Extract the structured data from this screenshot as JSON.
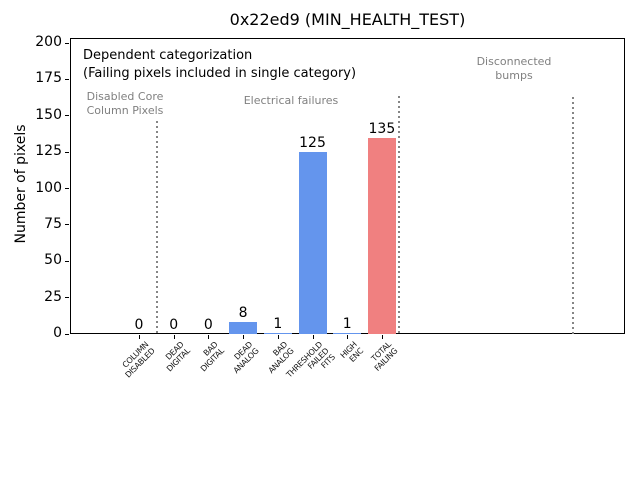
{
  "chart_data": {
    "type": "bar",
    "title": "0x22ed9 (MIN_HEALTH_TEST)",
    "xlabel": "",
    "ylabel": "Number of pixels",
    "ylim": [
      0,
      200
    ],
    "yticks": [
      0,
      25,
      50,
      75,
      100,
      125,
      150,
      175,
      200
    ],
    "grid": false,
    "legend": null,
    "categories": [
      "COLUMN\nDISABLED",
      "DEAD\nDIGITAL",
      "BAD\nDIGITAL",
      "DEAD\nANALOG",
      "BAD\nANALOG",
      "THRESHOLD\nFAILED\nFITS",
      "HIGH\nENC",
      "TOTAL\nFAILING"
    ],
    "values": [
      0,
      0,
      0,
      8,
      1,
      125,
      1,
      135
    ],
    "value_labels": [
      "0",
      "0",
      "0",
      "8",
      "1",
      "125",
      "1",
      "135"
    ],
    "bar_colors": [
      "#6495ed",
      "#6495ed",
      "#6495ed",
      "#6495ed",
      "#6495ed",
      "#6495ed",
      "#6495ed",
      "#f08080"
    ],
    "annotations": {
      "note": "Dependent categorization\n(Failing pixels included in single category)",
      "group_labels": [
        {
          "text": "Disabled Core\nColumn Pixels"
        },
        {
          "text": "Electrical failures"
        },
        {
          "text": "Disconnected\nbumps"
        }
      ]
    },
    "colors": {
      "bar_blue": "#6495ed",
      "bar_red": "#f08080",
      "annotation_gray": "#808080",
      "separator_gray": "#858585",
      "axis_black": "#000000"
    }
  }
}
